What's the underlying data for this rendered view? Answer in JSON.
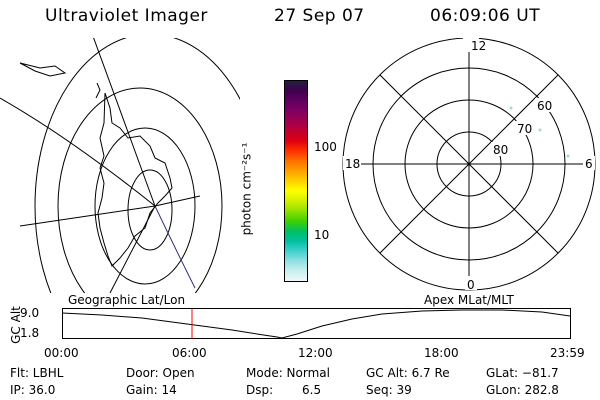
{
  "header": {
    "instrument": "Ultraviolet Imager",
    "date": "27 Sep 07",
    "time": "06:09:06 UT"
  },
  "colorbar": {
    "unit_label": "photon cm⁻²s⁻¹",
    "ticks": [
      "100",
      "10"
    ],
    "colors": [
      "#202040",
      "#400050",
      "#600060",
      "#800060",
      "#a00050",
      "#c00030",
      "#e00010",
      "#ff3000",
      "#ff7000",
      "#ffa000",
      "#ffd000",
      "#ffff00",
      "#d0f000",
      "#90e000",
      "#40d000",
      "#00c060",
      "#00c0a0",
      "#40d0d0",
      "#90e0e0",
      "#c8f0f0",
      "#f0f8f8"
    ]
  },
  "polar_plot": {
    "mlt_labels": {
      "top": "12",
      "bottom": "0",
      "left": "18",
      "right": "6"
    },
    "lat_labels": [
      "60",
      "70",
      "80"
    ]
  },
  "timeline": {
    "left_title": "Geographic Lat/Lon",
    "right_title": "Apex MLat/MLT",
    "axis_label": "GC Alt",
    "y_ticks": [
      "9.0",
      "1.8"
    ],
    "x_ticks": [
      "00:00",
      "06:00",
      "12:00",
      "18:00",
      "23:59"
    ],
    "current_time_marker_color": "#ff0000"
  },
  "info": {
    "row1": [
      "Flt: LBHL",
      "Door: Open",
      "Mode: Normal",
      "GC Alt: 6.7 Re",
      "GLat: −81.7"
    ],
    "row2": [
      "IP: 36.0",
      "Gain: 14",
      "Dsp:",
      "6.5",
      "Seq: 39",
      "GLon: 282.8"
    ]
  }
}
